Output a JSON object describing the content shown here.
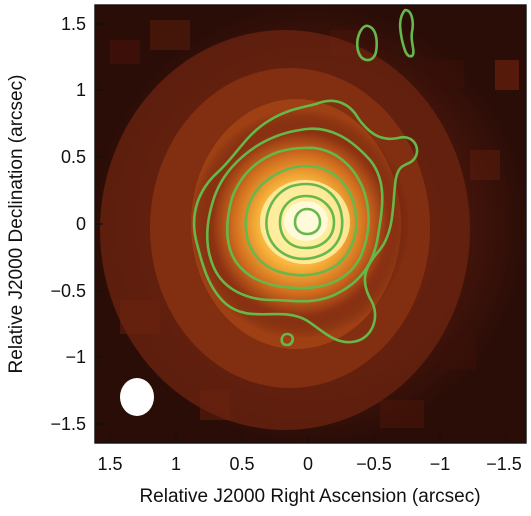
{
  "figure": {
    "xlabel": "Relative J2000 Right Ascension (arcsec)",
    "ylabel": "Relative J2000 Declination (arcsec)",
    "x_ticks": [
      "1.5",
      "1",
      "0.5",
      "0",
      "−0.5",
      "−1",
      "−1.5"
    ],
    "y_ticks": [
      "1.5",
      "1",
      "0.5",
      "0",
      "−0.5",
      "−1",
      "−1.5"
    ],
    "contour_color": "#66b84a",
    "beam_color": "#ffffff",
    "colormap": [
      "#1a0906",
      "#3c120b",
      "#6b2211",
      "#a03c14",
      "#d8721c",
      "#f6c03a",
      "#fff6b8"
    ]
  }
}
